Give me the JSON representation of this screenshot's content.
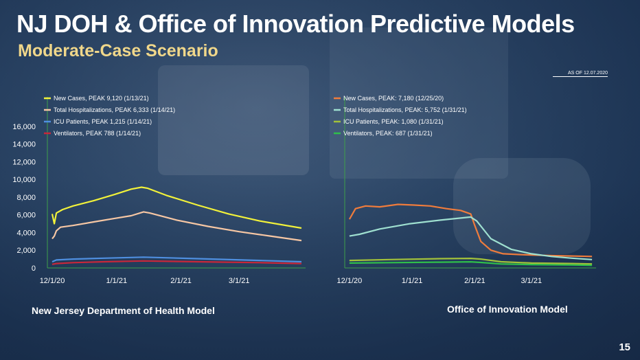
{
  "header": {
    "title": "NJ DOH & Office of Innovation Predictive Models",
    "subtitle": "Moderate-Case Scenario",
    "as_of": "AS OF 12.07.2020"
  },
  "labels": {
    "left_model": "New Jersey Department of Health Model",
    "right_model": "Office of Innovation Model"
  },
  "page_number": "15",
  "colors": {
    "title": "#ffffff",
    "subtitle": "#f0d78a",
    "left_new_cases": "#f2f23a",
    "left_total_hosp": "#f7c7a4",
    "left_icu": "#4f8fe0",
    "left_vent": "#c8273a",
    "right_new_cases": "#f07c3c",
    "right_total_hosp": "#9fe0d0",
    "right_icu": "#a3c23a",
    "right_vent": "#2fbf4a"
  },
  "chart_data": [
    {
      "type": "line",
      "name": "New Jersey Department of Health Model",
      "y_ticks": [
        "0",
        "2,000",
        "4,000",
        "6,000",
        "8,000",
        "10,000",
        "12,000",
        "14,000",
        "16,000"
      ],
      "ylim": [
        0,
        17000
      ],
      "x_ticks": [
        {
          "label": "12/1/20",
          "x": 0
        },
        {
          "label": "1/1/21",
          "x": 31
        },
        {
          "label": "2/1/21",
          "x": 62
        },
        {
          "label": "3/1/21",
          "x": 90
        }
      ],
      "xlim": [
        -2,
        122
      ],
      "grid": false,
      "series": [
        {
          "name": "New Cases, PEAK 9,120 (1/13/21)",
          "color_key": "left_new_cases",
          "x": [
            0,
            1,
            2,
            5,
            10,
            20,
            30,
            38,
            43,
            46,
            55,
            70,
            85,
            100,
            120
          ],
          "y": [
            6100,
            5000,
            6200,
            6600,
            7000,
            7600,
            8300,
            8900,
            9120,
            9000,
            8200,
            7100,
            6100,
            5300,
            4500
          ]
        },
        {
          "name": "Total Hospitalizations, PEAK 6,333 (1/14/21)",
          "color_key": "left_total_hosp",
          "x": [
            0,
            1,
            2,
            4,
            10,
            20,
            30,
            38,
            44,
            47,
            60,
            75,
            90,
            105,
            120
          ],
          "y": [
            3300,
            3600,
            4200,
            4600,
            4800,
            5200,
            5600,
            5900,
            6333,
            6200,
            5400,
            4700,
            4100,
            3600,
            3100
          ]
        },
        {
          "name": "ICU Patients, PEAK 1,215 (1/14/21)",
          "color_key": "left_icu",
          "x": [
            0,
            2,
            10,
            25,
            44,
            70,
            100,
            120
          ],
          "y": [
            700,
            900,
            1000,
            1100,
            1215,
            1050,
            850,
            700
          ]
        },
        {
          "name": "Ventilators, PEAK 788 (1/14/21)",
          "color_key": "left_vent",
          "x": [
            0,
            2,
            10,
            25,
            44,
            70,
            100,
            120
          ],
          "y": [
            400,
            500,
            600,
            700,
            788,
            700,
            600,
            500
          ]
        }
      ]
    },
    {
      "type": "line",
      "name": "Office of Innovation Model",
      "x_ticks": [
        {
          "label": "12/1/20",
          "x": 0
        },
        {
          "label": "1/1/21",
          "x": 31
        },
        {
          "label": "2/1/21",
          "x": 62
        },
        {
          "label": "3/1/21",
          "x": 90
        }
      ],
      "xlim": [
        -2,
        122
      ],
      "ylim": [
        0,
        17000
      ],
      "grid": false,
      "series": [
        {
          "name": "New Cases, PEAK: 7,180 (12/25/20)",
          "color_key": "right_new_cases",
          "x": [
            0,
            3,
            8,
            15,
            24,
            32,
            40,
            48,
            55,
            60,
            62,
            65,
            70,
            76,
            85,
            100,
            120
          ],
          "y": [
            5500,
            6700,
            7000,
            6900,
            7180,
            7100,
            7000,
            6700,
            6500,
            6100,
            4800,
            3000,
            2000,
            1600,
            1500,
            1400,
            1300
          ]
        },
        {
          "name": "Total Hospitalizations, PEAK: 5,752 (1/31/21)",
          "color_key": "right_total_hosp",
          "x": [
            0,
            5,
            15,
            30,
            45,
            60,
            63,
            70,
            80,
            90,
            100,
            110,
            120
          ],
          "y": [
            3600,
            3800,
            4400,
            5000,
            5400,
            5752,
            5300,
            3300,
            2100,
            1600,
            1300,
            1100,
            950
          ]
        },
        {
          "name": "ICU Patients, PEAK: 1,080 (1/31/21)",
          "color_key": "right_icu",
          "x": [
            0,
            20,
            45,
            60,
            65,
            75,
            90,
            110,
            120
          ],
          "y": [
            850,
            950,
            1050,
            1080,
            1000,
            700,
            550,
            500,
            450
          ]
        },
        {
          "name": "Ventilators, PEAK: 687 (1/31/21)",
          "color_key": "right_vent",
          "x": [
            0,
            20,
            45,
            60,
            65,
            75,
            90,
            110,
            120
          ],
          "y": [
            550,
            600,
            650,
            687,
            620,
            450,
            380,
            330,
            300
          ]
        }
      ]
    }
  ]
}
